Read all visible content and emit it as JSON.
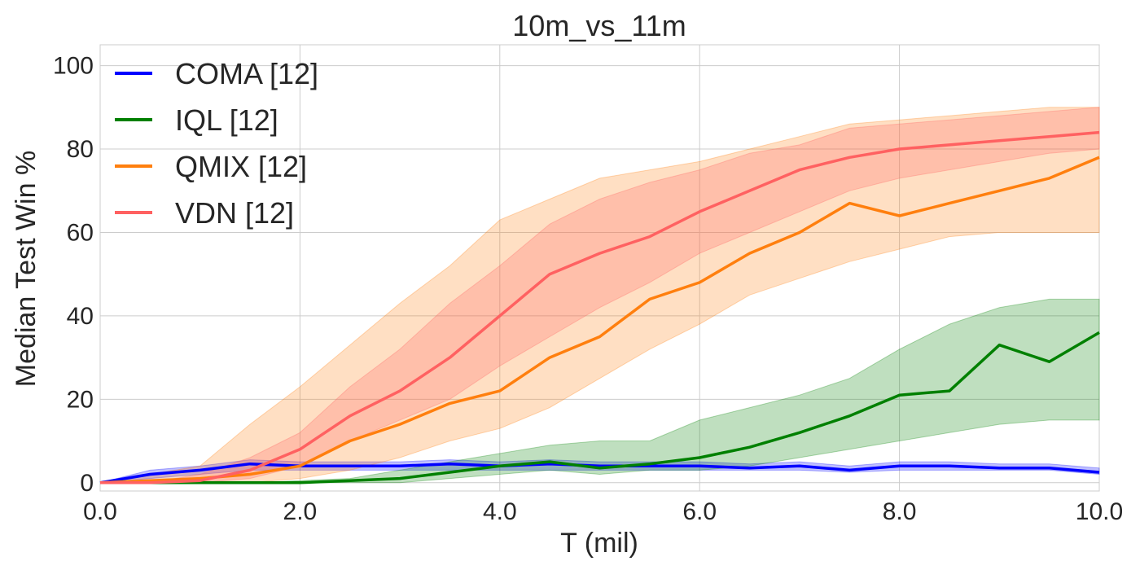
{
  "chart_data": {
    "type": "line",
    "title": "10m_vs_11m",
    "xlabel": "T (mil)",
    "ylabel": "Median Test Win %",
    "xlim": [
      0,
      10
    ],
    "ylim": [
      -2,
      105
    ],
    "xticks": [
      0,
      2,
      4,
      6,
      8,
      10
    ],
    "xtick_labels": [
      "0.0",
      "2.0",
      "4.0",
      "6.0",
      "8.0",
      "10.0"
    ],
    "yticks": [
      0,
      20,
      40,
      60,
      80,
      100
    ],
    "ytick_labels": [
      "0",
      "20",
      "40",
      "60",
      "80",
      "100"
    ],
    "grid": true,
    "legend_position": "top-left",
    "series": [
      {
        "name": "COMA [12]",
        "color": "#0000ff",
        "x": [
          0,
          0.5,
          1.0,
          1.5,
          2.0,
          2.5,
          3.0,
          3.5,
          4.0,
          4.5,
          5.0,
          5.5,
          6.0,
          6.5,
          7.0,
          7.5,
          8.0,
          8.5,
          9.0,
          9.5,
          10.0
        ],
        "values": [
          0,
          2,
          3,
          4.5,
          4,
          4,
          4,
          4.5,
          4,
          4.5,
          4,
          4,
          4,
          3.5,
          4,
          3,
          4,
          4,
          3.5,
          3.5,
          2.5
        ],
        "lower": [
          0,
          1,
          2,
          3,
          3,
          3,
          3,
          3,
          3,
          3,
          3,
          3,
          3,
          3,
          3,
          2.5,
          3,
          3,
          3,
          3,
          2
        ],
        "upper": [
          0,
          3,
          4,
          5.5,
          5,
          5,
          5,
          5.5,
          5,
          5.5,
          5,
          5,
          5,
          4.5,
          5,
          4,
          5,
          5,
          4.5,
          4.5,
          3.5
        ]
      },
      {
        "name": "IQL [12]",
        "color": "#008000",
        "x": [
          0,
          0.5,
          1.0,
          1.5,
          2.0,
          2.5,
          3.0,
          3.5,
          4.0,
          4.5,
          5.0,
          5.5,
          6.0,
          6.5,
          7.0,
          7.5,
          8.0,
          8.5,
          9.0,
          9.5,
          10.0
        ],
        "values": [
          0,
          0,
          0,
          0,
          0,
          0.5,
          1,
          2.5,
          4,
          5,
          3.5,
          4.5,
          6,
          8.5,
          12,
          16,
          21,
          22,
          33,
          29,
          36
        ],
        "lower": [
          0,
          0,
          0,
          0,
          0,
          0,
          0,
          1,
          2,
          3,
          2,
          3,
          3,
          4,
          6,
          8,
          10,
          12,
          14,
          15,
          15
        ],
        "upper": [
          0,
          0,
          0,
          0,
          0.5,
          1,
          3,
          5,
          7,
          9,
          10,
          10,
          15,
          18,
          21,
          25,
          32,
          38,
          42,
          44,
          44
        ]
      },
      {
        "name": "QMIX [12]",
        "color": "#ff7f0e",
        "x": [
          0,
          0.5,
          1.0,
          1.5,
          2.0,
          2.5,
          3.0,
          3.5,
          4.0,
          4.5,
          5.0,
          5.5,
          6.0,
          6.5,
          7.0,
          7.5,
          8.0,
          8.5,
          9.0,
          9.5,
          10.0
        ],
        "values": [
          0,
          0.5,
          1,
          2,
          4,
          10,
          14,
          19,
          22,
          30,
          35,
          44,
          48,
          55,
          60,
          67,
          64,
          67,
          70,
          73,
          78
        ],
        "lower": [
          0,
          0,
          0,
          0,
          1,
          3,
          6,
          10,
          13,
          18,
          25,
          32,
          38,
          45,
          49,
          53,
          56,
          59,
          60,
          60,
          60
        ],
        "upper": [
          0,
          2,
          4,
          14,
          23,
          33,
          43,
          52,
          63,
          68,
          73,
          75,
          77,
          80,
          83,
          86,
          87,
          88,
          89,
          90,
          90
        ]
      },
      {
        "name": "VDN [12]",
        "color": "#ff6161",
        "x": [
          0,
          0.5,
          1.0,
          1.5,
          2.0,
          2.5,
          3.0,
          3.5,
          4.0,
          4.5,
          5.0,
          5.5,
          6.0,
          6.5,
          7.0,
          7.5,
          8.0,
          8.5,
          9.0,
          9.5,
          10.0
        ],
        "values": [
          0,
          0,
          0.5,
          3,
          8,
          16,
          22,
          30,
          40,
          50,
          55,
          59,
          65,
          70,
          75,
          78,
          80,
          81,
          82,
          83,
          84
        ],
        "lower": [
          0,
          0,
          0,
          1,
          4,
          10,
          15,
          20,
          28,
          35,
          42,
          48,
          55,
          60,
          65,
          70,
          73,
          75,
          77,
          79,
          80
        ],
        "upper": [
          0,
          0,
          2,
          6,
          12,
          23,
          32,
          43,
          52,
          62,
          68,
          72,
          75,
          79,
          81,
          85,
          86,
          87,
          88,
          89,
          90
        ]
      }
    ]
  }
}
